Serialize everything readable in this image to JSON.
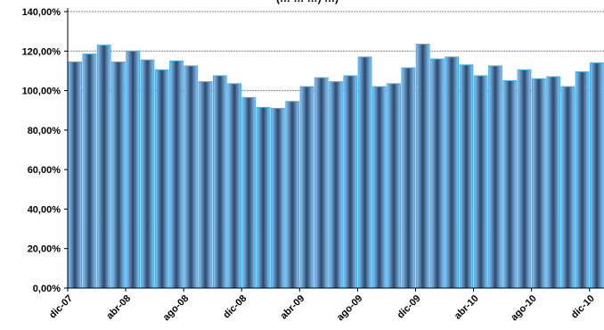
{
  "title_fragment": "(… … …) …)",
  "colors": {
    "bar_fill": "#8fc6ff",
    "bar_center": "#2a4a6a",
    "bar_stroke": "#39b4ea",
    "gridline": "#888888",
    "axis": "#000000"
  },
  "chart_data": {
    "type": "bar",
    "title": "",
    "xlabel": "",
    "ylabel": "",
    "ylim": [
      0,
      140
    ],
    "y_ticks": [
      0,
      20,
      40,
      60,
      80,
      100,
      120,
      140
    ],
    "y_tick_labels": [
      "0,00%",
      "20,00%",
      "40,00%",
      "60,00%",
      "80,00%",
      "100,00%",
      "120,00%",
      "140,00%"
    ],
    "gridlines": [
      100,
      120,
      140
    ],
    "x_tick_labels": [
      {
        "index": 0,
        "label": "dic-07"
      },
      {
        "index": 4,
        "label": "abr-08"
      },
      {
        "index": 8,
        "label": "ago-08"
      },
      {
        "index": 12,
        "label": "dic-08"
      },
      {
        "index": 16,
        "label": "abr-09"
      },
      {
        "index": 20,
        "label": "ago-09"
      },
      {
        "index": 24,
        "label": "dic-09"
      },
      {
        "index": 28,
        "label": "abr-10"
      },
      {
        "index": 32,
        "label": "ago-10"
      },
      {
        "index": 36,
        "label": "dic-10"
      }
    ],
    "values": [
      114.5,
      118.5,
      123.0,
      114.5,
      120.0,
      115.5,
      110.5,
      115.0,
      112.5,
      104.5,
      107.5,
      103.5,
      96.5,
      91.5,
      91.0,
      94.5,
      102.0,
      106.5,
      104.5,
      107.5,
      117.0,
      102.0,
      103.5,
      111.5,
      123.5,
      116.0,
      117.0,
      113.0,
      107.5,
      112.5,
      105.0,
      110.5,
      106.0,
      107.0,
      102.0,
      109.5,
      114.0
    ]
  }
}
